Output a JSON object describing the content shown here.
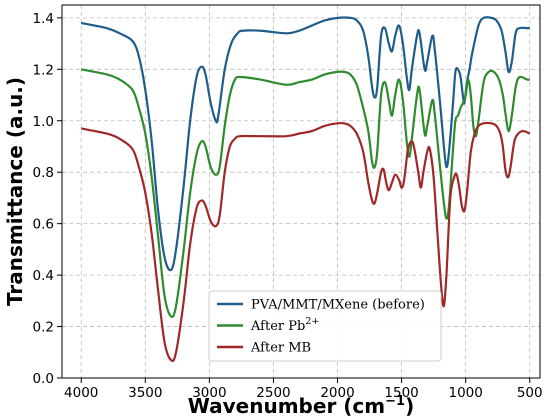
{
  "chart_data": {
    "type": "line",
    "xlabel": "Wavenumber (cm",
    "xlabel_sup": "−1",
    "xlabel_end": ")",
    "ylabel": "Transmittance (a.u.)",
    "xlim": [
      4150,
      420
    ],
    "ylim": [
      0,
      1.45
    ],
    "x_ticks": [
      4000,
      3500,
      3000,
      2500,
      2000,
      1500,
      1000,
      500
    ],
    "y_ticks": [
      "0.0",
      "0.2",
      "0.4",
      "0.6",
      "0.8",
      "1.0",
      "1.2",
      "1.4"
    ],
    "grid": true,
    "legend_position": "lower-center",
    "series": [
      {
        "name": "PVA/MMT/MXene (before)",
        "color": "#1f5d8a",
        "points": [
          [
            4000,
            1.38
          ],
          [
            3800,
            1.36
          ],
          [
            3700,
            1.34
          ],
          [
            3600,
            1.31
          ],
          [
            3550,
            1.25
          ],
          [
            3500,
            1.12
          ],
          [
            3450,
            0.92
          ],
          [
            3400,
            0.65
          ],
          [
            3350,
            0.47
          ],
          [
            3300,
            0.42
          ],
          [
            3260,
            0.5
          ],
          [
            3200,
            0.75
          ],
          [
            3150,
            1.0
          ],
          [
            3100,
            1.17
          ],
          [
            3060,
            1.21
          ],
          [
            3030,
            1.18
          ],
          [
            2990,
            1.07
          ],
          [
            2950,
            1.0
          ],
          [
            2930,
            1.02
          ],
          [
            2880,
            1.2
          ],
          [
            2830,
            1.3
          ],
          [
            2780,
            1.34
          ],
          [
            2740,
            1.35
          ],
          [
            2600,
            1.35
          ],
          [
            2400,
            1.34
          ],
          [
            2300,
            1.35
          ],
          [
            2200,
            1.37
          ],
          [
            2100,
            1.39
          ],
          [
            2000,
            1.4
          ],
          [
            1900,
            1.4
          ],
          [
            1850,
            1.39
          ],
          [
            1800,
            1.35
          ],
          [
            1760,
            1.25
          ],
          [
            1730,
            1.13
          ],
          [
            1710,
            1.09
          ],
          [
            1690,
            1.13
          ],
          [
            1660,
            1.33
          ],
          [
            1630,
            1.36
          ],
          [
            1600,
            1.3
          ],
          [
            1575,
            1.27
          ],
          [
            1550,
            1.33
          ],
          [
            1520,
            1.37
          ],
          [
            1490,
            1.3
          ],
          [
            1460,
            1.17
          ],
          [
            1440,
            1.12
          ],
          [
            1420,
            1.2
          ],
          [
            1380,
            1.33
          ],
          [
            1360,
            1.34
          ],
          [
            1320,
            1.2
          ],
          [
            1300,
            1.23
          ],
          [
            1260,
            1.33
          ],
          [
            1240,
            1.27
          ],
          [
            1200,
            1.07
          ],
          [
            1170,
            0.9
          ],
          [
            1150,
            0.82
          ],
          [
            1130,
            0.88
          ],
          [
            1100,
            1.06
          ],
          [
            1080,
            1.19
          ],
          [
            1060,
            1.2
          ],
          [
            1040,
            1.17
          ],
          [
            1020,
            1.09
          ],
          [
            1010,
            1.07
          ],
          [
            990,
            1.15
          ],
          [
            970,
            1.2
          ],
          [
            950,
            1.26
          ],
          [
            900,
            1.37
          ],
          [
            860,
            1.4
          ],
          [
            800,
            1.4
          ],
          [
            760,
            1.39
          ],
          [
            720,
            1.35
          ],
          [
            690,
            1.27
          ],
          [
            665,
            1.19
          ],
          [
            640,
            1.23
          ],
          [
            610,
            1.34
          ],
          [
            580,
            1.36
          ],
          [
            520,
            1.36
          ],
          [
            500,
            1.36
          ]
        ]
      },
      {
        "name": "After Pb",
        "name_sup": "2+",
        "color": "#2e8b2e",
        "points": [
          [
            4000,
            1.2
          ],
          [
            3800,
            1.18
          ],
          [
            3700,
            1.16
          ],
          [
            3600,
            1.12
          ],
          [
            3550,
            1.05
          ],
          [
            3500,
            0.95
          ],
          [
            3450,
            0.78
          ],
          [
            3400,
            0.55
          ],
          [
            3350,
            0.32
          ],
          [
            3300,
            0.24
          ],
          [
            3260,
            0.28
          ],
          [
            3200,
            0.5
          ],
          [
            3150,
            0.72
          ],
          [
            3100,
            0.87
          ],
          [
            3060,
            0.92
          ],
          [
            3030,
            0.9
          ],
          [
            2990,
            0.82
          ],
          [
            2950,
            0.79
          ],
          [
            2920,
            0.82
          ],
          [
            2880,
            0.98
          ],
          [
            2840,
            1.1
          ],
          [
            2800,
            1.16
          ],
          [
            2760,
            1.17
          ],
          [
            2600,
            1.16
          ],
          [
            2400,
            1.14
          ],
          [
            2300,
            1.15
          ],
          [
            2200,
            1.16
          ],
          [
            2100,
            1.18
          ],
          [
            2000,
            1.19
          ],
          [
            1950,
            1.19
          ],
          [
            1900,
            1.18
          ],
          [
            1850,
            1.14
          ],
          [
            1800,
            1.05
          ],
          [
            1760,
            0.96
          ],
          [
            1730,
            0.84
          ],
          [
            1710,
            0.82
          ],
          [
            1690,
            0.88
          ],
          [
            1660,
            1.1
          ],
          [
            1630,
            1.15
          ],
          [
            1600,
            1.08
          ],
          [
            1575,
            1.02
          ],
          [
            1550,
            1.1
          ],
          [
            1520,
            1.16
          ],
          [
            1490,
            1.08
          ],
          [
            1460,
            0.92
          ],
          [
            1440,
            0.86
          ],
          [
            1420,
            0.93
          ],
          [
            1380,
            1.1
          ],
          [
            1360,
            1.12
          ],
          [
            1320,
            0.95
          ],
          [
            1300,
            0.98
          ],
          [
            1260,
            1.08
          ],
          [
            1240,
            1.02
          ],
          [
            1200,
            0.82
          ],
          [
            1170,
            0.68
          ],
          [
            1150,
            0.62
          ],
          [
            1130,
            0.67
          ],
          [
            1100,
            0.88
          ],
          [
            1080,
            1.0
          ],
          [
            1060,
            1.02
          ],
          [
            1040,
            1.05
          ],
          [
            1020,
            1.07
          ],
          [
            1000,
            1.1
          ],
          [
            980,
            1.16
          ],
          [
            960,
            1.1
          ],
          [
            940,
            0.98
          ],
          [
            920,
            0.94
          ],
          [
            900,
            1.0
          ],
          [
            860,
            1.15
          ],
          [
            820,
            1.19
          ],
          [
            780,
            1.19
          ],
          [
            740,
            1.16
          ],
          [
            710,
            1.1
          ],
          [
            690,
            1.03
          ],
          [
            665,
            0.96
          ],
          [
            640,
            1.02
          ],
          [
            610,
            1.13
          ],
          [
            580,
            1.17
          ],
          [
            520,
            1.16
          ],
          [
            500,
            1.16
          ]
        ]
      },
      {
        "name": "After MB",
        "color": "#a02828",
        "points": [
          [
            4000,
            0.97
          ],
          [
            3800,
            0.95
          ],
          [
            3700,
            0.93
          ],
          [
            3600,
            0.89
          ],
          [
            3550,
            0.82
          ],
          [
            3500,
            0.72
          ],
          [
            3450,
            0.56
          ],
          [
            3400,
            0.34
          ],
          [
            3350,
            0.14
          ],
          [
            3300,
            0.07
          ],
          [
            3260,
            0.1
          ],
          [
            3200,
            0.3
          ],
          [
            3150,
            0.52
          ],
          [
            3100,
            0.66
          ],
          [
            3060,
            0.69
          ],
          [
            3030,
            0.67
          ],
          [
            2990,
            0.61
          ],
          [
            2950,
            0.59
          ],
          [
            2920,
            0.63
          ],
          [
            2880,
            0.8
          ],
          [
            2840,
            0.9
          ],
          [
            2800,
            0.93
          ],
          [
            2760,
            0.94
          ],
          [
            2600,
            0.94
          ],
          [
            2400,
            0.94
          ],
          [
            2300,
            0.95
          ],
          [
            2200,
            0.96
          ],
          [
            2100,
            0.98
          ],
          [
            2000,
            0.99
          ],
          [
            1950,
            0.99
          ],
          [
            1900,
            0.98
          ],
          [
            1850,
            0.95
          ],
          [
            1800,
            0.88
          ],
          [
            1760,
            0.76
          ],
          [
            1730,
            0.69
          ],
          [
            1710,
            0.68
          ],
          [
            1690,
            0.72
          ],
          [
            1660,
            0.8
          ],
          [
            1640,
            0.81
          ],
          [
            1620,
            0.76
          ],
          [
            1600,
            0.73
          ],
          [
            1575,
            0.76
          ],
          [
            1550,
            0.79
          ],
          [
            1520,
            0.77
          ],
          [
            1500,
            0.74
          ],
          [
            1480,
            0.77
          ],
          [
            1450,
            0.89
          ],
          [
            1420,
            0.92
          ],
          [
            1400,
            0.89
          ],
          [
            1370,
            0.8
          ],
          [
            1350,
            0.74
          ],
          [
            1330,
            0.8
          ],
          [
            1300,
            0.88
          ],
          [
            1280,
            0.89
          ],
          [
            1250,
            0.78
          ],
          [
            1220,
            0.56
          ],
          [
            1190,
            0.35
          ],
          [
            1170,
            0.28
          ],
          [
            1150,
            0.4
          ],
          [
            1120,
            0.7
          ],
          [
            1090,
            0.78
          ],
          [
            1070,
            0.79
          ],
          [
            1050,
            0.74
          ],
          [
            1030,
            0.67
          ],
          [
            1010,
            0.65
          ],
          [
            990,
            0.72
          ],
          [
            960,
            0.88
          ],
          [
            930,
            0.95
          ],
          [
            900,
            0.98
          ],
          [
            860,
            0.99
          ],
          [
            800,
            0.99
          ],
          [
            760,
            0.98
          ],
          [
            730,
            0.95
          ],
          [
            710,
            0.9
          ],
          [
            690,
            0.81
          ],
          [
            670,
            0.78
          ],
          [
            650,
            0.82
          ],
          [
            620,
            0.92
          ],
          [
            590,
            0.95
          ],
          [
            550,
            0.96
          ],
          [
            500,
            0.95
          ]
        ]
      }
    ]
  }
}
